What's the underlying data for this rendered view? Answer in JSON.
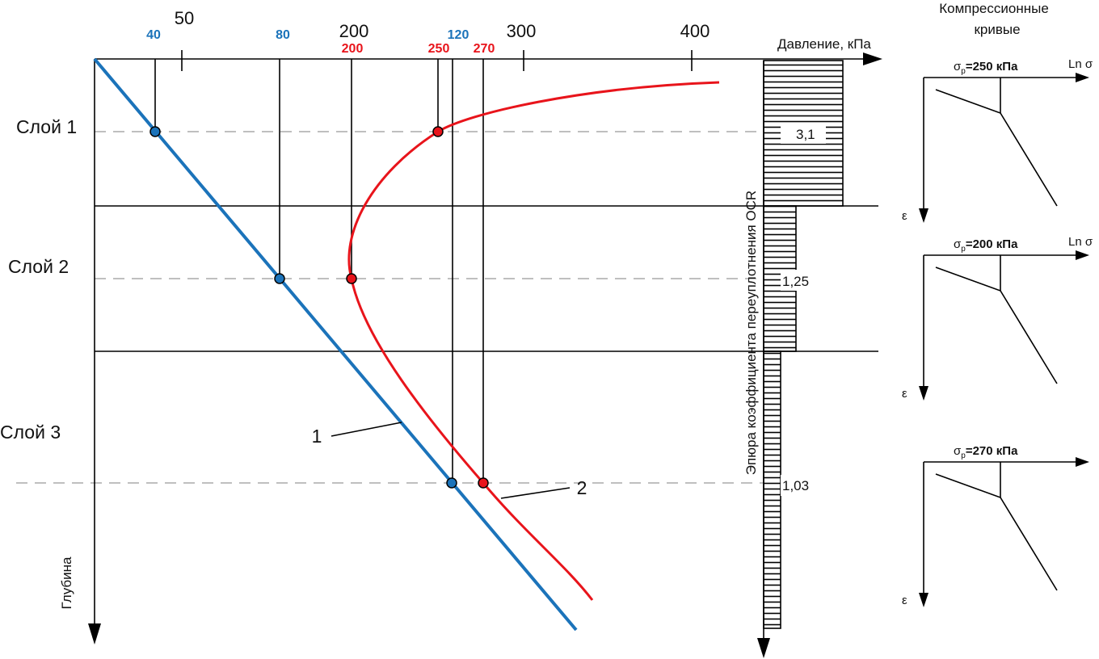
{
  "axis": {
    "title": "Давление, кПа",
    "ticks": [
      "50",
      "200",
      "300",
      "400"
    ],
    "depth_label": "Глубина"
  },
  "layers": [
    "Слой 1",
    "Слой 2",
    "Слой 3"
  ],
  "stress_labels": {
    "blue": [
      "40",
      "80",
      "120"
    ],
    "red": [
      "200",
      "250",
      "270"
    ]
  },
  "curve_labels": [
    "1",
    "2"
  ],
  "ocr": {
    "title": "Эпюра коэффициента переуплотнения OCR",
    "values": [
      "3,1",
      "1,25",
      "1,03"
    ]
  },
  "compression": {
    "title_lines": [
      "Компрессионные",
      "кривые"
    ],
    "curves": [
      {
        "symbol": "σ",
        "subscript": "p",
        "value": "=250 кПа",
        "x_axis": "Ln σ",
        "y_axis": "ε"
      },
      {
        "symbol": "σ",
        "subscript": "p",
        "value": "=200 кПа",
        "x_axis": "Ln σ",
        "y_axis": "ε"
      },
      {
        "symbol": "σ",
        "subscript": "p",
        "value": "=270 кПа",
        "y_axis": "ε"
      }
    ]
  }
}
